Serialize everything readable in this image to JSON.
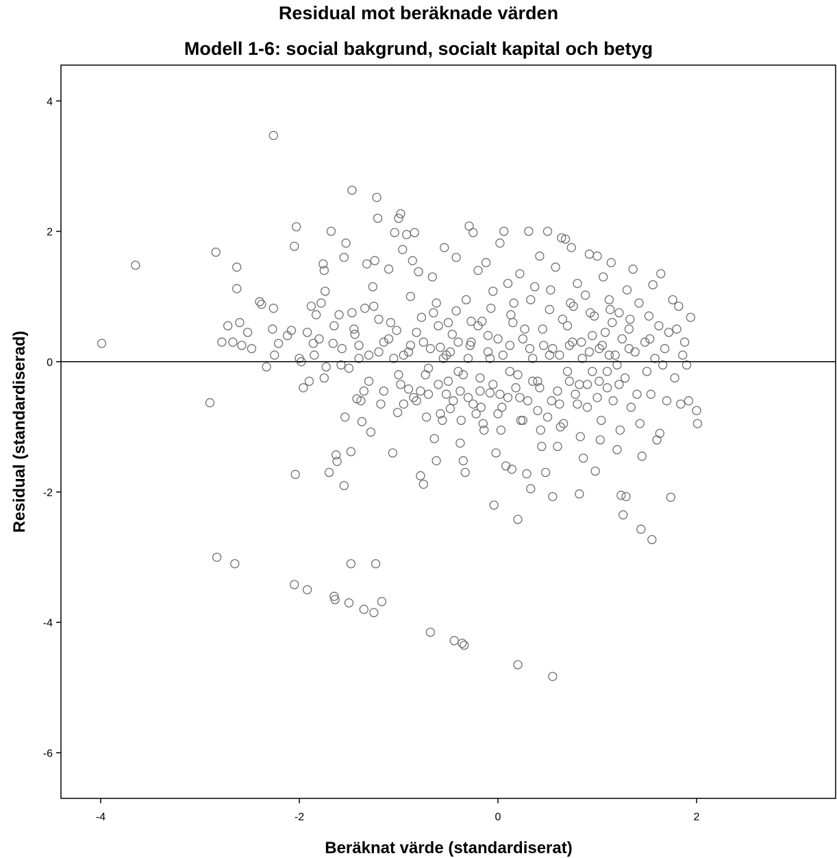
{
  "chart_data": {
    "type": "scatter",
    "title": "Residual mot beräknade värden",
    "subtitle": "Modell 1-6: social bakgrund, socialt kapital och betyg",
    "xlabel": "Beräknat värde (standardiserat)",
    "ylabel": "Residual (standardiserad)",
    "xlim": [
      -4.4,
      3.4
    ],
    "ylim": [
      -6.7,
      4.55
    ],
    "xticks": [
      -4,
      -2,
      0,
      2
    ],
    "yticks": [
      -6,
      -4,
      -2,
      0,
      2,
      4
    ],
    "xtick_labels": [
      "-4",
      "-2",
      "0",
      "2"
    ],
    "ytick_labels": [
      "-6",
      "-4",
      "-2",
      "0",
      "2",
      "4"
    ],
    "reference_line_y": 0,
    "grid": false,
    "legend": "none",
    "marker_color": "#6e6e6e",
    "points": [
      [
        -3.99,
        0.28
      ],
      [
        -3.65,
        1.48
      ],
      [
        -2.9,
        -0.63
      ],
      [
        -2.84,
        1.68
      ],
      [
        -2.83,
        -3.0
      ],
      [
        -2.78,
        0.3
      ],
      [
        -2.72,
        0.55
      ],
      [
        -2.67,
        0.3
      ],
      [
        -2.65,
        -3.1
      ],
      [
        -2.63,
        1.45
      ],
      [
        -2.63,
        1.12
      ],
      [
        -2.6,
        0.6
      ],
      [
        -2.58,
        0.25
      ],
      [
        -2.52,
        0.45
      ],
      [
        -2.48,
        0.2
      ],
      [
        -2.4,
        0.92
      ],
      [
        -2.38,
        0.88
      ],
      [
        -2.33,
        -0.08
      ],
      [
        -2.26,
        3.47
      ],
      [
        -2.27,
        0.5
      ],
      [
        -2.26,
        0.82
      ],
      [
        -2.25,
        0.1
      ],
      [
        -2.21,
        0.28
      ],
      [
        -2.12,
        0.4
      ],
      [
        -2.08,
        0.48
      ],
      [
        -2.05,
        -3.42
      ],
      [
        -2.05,
        1.77
      ],
      [
        -2.04,
        -1.73
      ],
      [
        -2.03,
        2.07
      ],
      [
        -2.0,
        0.05
      ],
      [
        -1.98,
        0.0
      ],
      [
        -1.96,
        -0.4
      ],
      [
        -1.92,
        0.45
      ],
      [
        -1.92,
        -3.5
      ],
      [
        -1.9,
        -0.3
      ],
      [
        -1.88,
        0.85
      ],
      [
        -1.86,
        0.28
      ],
      [
        -1.83,
        0.72
      ],
      [
        -1.8,
        0.35
      ],
      [
        -1.78,
        0.9
      ],
      [
        -1.76,
        1.5
      ],
      [
        -1.75,
        1.4
      ],
      [
        -1.74,
        1.08
      ],
      [
        -1.73,
        -0.08
      ],
      [
        -1.7,
        -1.7
      ],
      [
        -1.68,
        2.0
      ],
      [
        -1.66,
        0.28
      ],
      [
        -1.65,
        -3.6
      ],
      [
        -1.64,
        -3.65
      ],
      [
        -1.63,
        -1.43
      ],
      [
        -1.62,
        -1.53
      ],
      [
        -1.6,
        0.72
      ],
      [
        -1.57,
        0.2
      ],
      [
        -1.55,
        -1.9
      ],
      [
        -1.55,
        1.6
      ],
      [
        -1.54,
        -0.85
      ],
      [
        -1.53,
        1.82
      ],
      [
        -1.5,
        -3.7
      ],
      [
        -1.48,
        -1.38
      ],
      [
        -1.48,
        -3.1
      ],
      [
        -1.47,
        2.63
      ],
      [
        -1.47,
        0.75
      ],
      [
        -1.44,
        0.42
      ],
      [
        -1.42,
        -0.57
      ],
      [
        -1.4,
        0.05
      ],
      [
        -1.38,
        -0.6
      ],
      [
        -1.37,
        -0.92
      ],
      [
        -1.35,
        -3.8
      ],
      [
        -1.34,
        0.82
      ],
      [
        -1.32,
        1.5
      ],
      [
        -1.3,
        0.1
      ],
      [
        -1.28,
        -1.08
      ],
      [
        -1.26,
        1.15
      ],
      [
        -1.25,
        -3.85
      ],
      [
        -1.24,
        1.55
      ],
      [
        -1.23,
        -3.1
      ],
      [
        -1.22,
        2.52
      ],
      [
        -1.21,
        2.2
      ],
      [
        -1.2,
        0.65
      ],
      [
        -1.17,
        -3.68
      ],
      [
        -1.15,
        0.3
      ],
      [
        -1.1,
        1.42
      ],
      [
        -1.06,
        -1.4
      ],
      [
        -1.04,
        1.98
      ],
      [
        -1.02,
        0.48
      ],
      [
        -1.01,
        -0.78
      ],
      [
        -1.0,
        2.2
      ],
      [
        -0.98,
        2.27
      ],
      [
        -0.96,
        1.72
      ],
      [
        -0.95,
        0.1
      ],
      [
        -0.92,
        1.95
      ],
      [
        -0.9,
        -0.42
      ],
      [
        -0.88,
        1.0
      ],
      [
        -0.86,
        1.55
      ],
      [
        -0.84,
        1.98
      ],
      [
        -0.82,
        -0.6
      ],
      [
        -0.8,
        1.38
      ],
      [
        -0.78,
        -1.75
      ],
      [
        -0.77,
        0.68
      ],
      [
        -0.75,
        -1.88
      ],
      [
        -0.73,
        -0.2
      ],
      [
        -0.7,
        -0.5
      ],
      [
        -0.68,
        -4.15
      ],
      [
        -0.66,
        1.3
      ],
      [
        -0.64,
        -1.18
      ],
      [
        -0.62,
        -1.52
      ],
      [
        -0.6,
        0.55
      ],
      [
        -0.58,
        0.22
      ],
      [
        -0.56,
        -0.9
      ],
      [
        -0.54,
        1.75
      ],
      [
        -0.52,
        0.1
      ],
      [
        -0.5,
        -0.3
      ],
      [
        -0.48,
        -0.72
      ],
      [
        -0.46,
        0.42
      ],
      [
        -0.44,
        -4.28
      ],
      [
        -0.42,
        1.6
      ],
      [
        -0.4,
        -0.15
      ],
      [
        -0.38,
        -1.25
      ],
      [
        -0.36,
        -4.32
      ],
      [
        -0.35,
        -1.52
      ],
      [
        -0.34,
        -4.35
      ],
      [
        -0.33,
        -1.7
      ],
      [
        -0.32,
        0.95
      ],
      [
        -0.3,
        -0.55
      ],
      [
        -0.29,
        2.08
      ],
      [
        -0.27,
        0.3
      ],
      [
        -0.25,
        1.98
      ],
      [
        -0.22,
        -0.8
      ],
      [
        -0.2,
        1.4
      ],
      [
        -0.18,
        -0.25
      ],
      [
        -0.16,
        0.62
      ],
      [
        -0.14,
        -1.05
      ],
      [
        -0.12,
        1.52
      ],
      [
        -0.1,
        0.15
      ],
      [
        -0.08,
        -0.48
      ],
      [
        -0.05,
        1.08
      ],
      [
        -0.04,
        -2.2
      ],
      [
        -0.02,
        -1.4
      ],
      [
        0.0,
        0.35
      ],
      [
        0.02,
        1.82
      ],
      [
        0.04,
        -0.7
      ],
      [
        0.06,
        2.0
      ],
      [
        0.08,
        -1.6
      ],
      [
        0.1,
        1.2
      ],
      [
        0.12,
        -0.15
      ],
      [
        0.14,
        -1.65
      ],
      [
        0.16,
        0.9
      ],
      [
        0.18,
        -0.4
      ],
      [
        0.2,
        -2.42
      ],
      [
        0.2,
        -4.65
      ],
      [
        0.22,
        1.35
      ],
      [
        0.25,
        -0.9
      ],
      [
        0.27,
        0.5
      ],
      [
        0.29,
        -1.72
      ],
      [
        0.31,
        2.0
      ],
      [
        0.33,
        -1.95
      ],
      [
        0.35,
        -0.3
      ],
      [
        0.37,
        1.15
      ],
      [
        0.4,
        -0.75
      ],
      [
        0.42,
        1.62
      ],
      [
        0.44,
        -1.3
      ],
      [
        0.46,
        0.25
      ],
      [
        0.48,
        -1.7
      ],
      [
        0.5,
        2.0
      ],
      [
        0.52,
        0.8
      ],
      [
        0.54,
        -0.6
      ],
      [
        0.55,
        -2.07
      ],
      [
        0.55,
        -4.83
      ],
      [
        0.58,
        1.45
      ],
      [
        0.6,
        -1.3
      ],
      [
        0.62,
        0.1
      ],
      [
        0.64,
        1.9
      ],
      [
        0.66,
        -0.95
      ],
      [
        0.68,
        1.88
      ],
      [
        0.7,
        0.55
      ],
      [
        0.72,
        -0.3
      ],
      [
        0.74,
        1.75
      ],
      [
        0.76,
        0.85
      ],
      [
        0.78,
        -0.5
      ],
      [
        0.8,
        1.2
      ],
      [
        0.82,
        -2.03
      ],
      [
        0.84,
        0.3
      ],
      [
        0.86,
        -1.48
      ],
      [
        0.88,
        1.02
      ],
      [
        0.9,
        -0.7
      ],
      [
        0.92,
        1.65
      ],
      [
        0.95,
        -0.15
      ],
      [
        0.97,
        0.7
      ],
      [
        0.98,
        -1.68
      ],
      [
        1.0,
        1.62
      ],
      [
        1.02,
        0.2
      ],
      [
        1.04,
        -0.9
      ],
      [
        1.06,
        1.3
      ],
      [
        1.08,
        0.45
      ],
      [
        1.1,
        -0.4
      ],
      [
        1.12,
        0.95
      ],
      [
        1.14,
        1.52
      ],
      [
        1.16,
        -0.6
      ],
      [
        1.18,
        0.1
      ],
      [
        1.2,
        -1.35
      ],
      [
        1.22,
        0.75
      ],
      [
        1.24,
        -2.05
      ],
      [
        1.26,
        -2.35
      ],
      [
        1.28,
        -0.25
      ],
      [
        1.29,
        -2.07
      ],
      [
        1.3,
        1.1
      ],
      [
        1.32,
        0.5
      ],
      [
        1.34,
        -0.7
      ],
      [
        1.36,
        1.42
      ],
      [
        1.38,
        0.15
      ],
      [
        1.4,
        -0.5
      ],
      [
        1.42,
        0.9
      ],
      [
        1.44,
        -2.57
      ],
      [
        1.45,
        -1.45
      ],
      [
        1.48,
        0.3
      ],
      [
        1.5,
        -0.15
      ],
      [
        1.52,
        0.7
      ],
      [
        1.54,
        -0.5
      ],
      [
        1.55,
        -2.73
      ],
      [
        1.56,
        1.18
      ],
      [
        1.58,
        0.05
      ],
      [
        1.6,
        -1.2
      ],
      [
        1.62,
        0.55
      ],
      [
        1.64,
        1.35
      ],
      [
        1.66,
        -0.05
      ],
      [
        1.68,
        0.2
      ],
      [
        1.7,
        -0.6
      ],
      [
        1.72,
        0.45
      ],
      [
        1.74,
        -2.08
      ],
      [
        1.76,
        0.95
      ],
      [
        1.78,
        -0.25
      ],
      [
        1.8,
        0.5
      ],
      [
        1.82,
        0.85
      ],
      [
        1.84,
        -0.65
      ],
      [
        1.86,
        0.1
      ],
      [
        1.88,
        0.3
      ],
      [
        1.9,
        -0.05
      ],
      [
        1.92,
        -0.6
      ],
      [
        1.94,
        0.68
      ],
      [
        2.0,
        -0.75
      ],
      [
        2.01,
        -0.95
      ],
      [
        -1.1,
        0.35
      ],
      [
        -1.0,
        -0.2
      ],
      [
        -0.9,
        0.15
      ],
      [
        -0.85,
        -0.55
      ],
      [
        -0.75,
        0.3
      ],
      [
        -0.7,
        -0.1
      ],
      [
        -0.65,
        0.75
      ],
      [
        -0.6,
        -0.35
      ],
      [
        -0.55,
        0.05
      ],
      [
        -0.5,
        0.6
      ],
      [
        -0.45,
        -0.6
      ],
      [
        -0.4,
        0.3
      ],
      [
        -0.35,
        -0.2
      ],
      [
        -0.3,
        0.05
      ],
      [
        -0.25,
        -0.65
      ],
      [
        -0.2,
        0.55
      ],
      [
        -0.15,
        -0.95
      ],
      [
        -0.1,
        0.4
      ],
      [
        -0.05,
        -0.35
      ],
      [
        0.0,
        -0.8
      ],
      [
        0.05,
        0.1
      ],
      [
        0.1,
        -0.55
      ],
      [
        0.15,
        0.6
      ],
      [
        0.2,
        -0.2
      ],
      [
        0.25,
        0.35
      ],
      [
        0.3,
        -0.6
      ],
      [
        0.35,
        0.05
      ],
      [
        0.4,
        -0.3
      ],
      [
        0.45,
        0.5
      ],
      [
        0.5,
        -0.85
      ],
      [
        0.55,
        0.2
      ],
      [
        0.6,
        -0.45
      ],
      [
        0.65,
        0.65
      ],
      [
        0.7,
        -0.15
      ],
      [
        0.75,
        0.3
      ],
      [
        0.8,
        -0.65
      ],
      [
        0.85,
        0.05
      ],
      [
        0.9,
        -0.35
      ],
      [
        0.95,
        0.4
      ],
      [
        1.0,
        -0.55
      ],
      [
        1.05,
        0.25
      ],
      [
        1.1,
        -0.15
      ],
      [
        1.15,
        0.6
      ],
      [
        1.2,
        -0.05
      ],
      [
        1.25,
        0.35
      ],
      [
        -1.5,
        -0.1
      ],
      [
        -1.4,
        0.25
      ],
      [
        -1.3,
        -0.3
      ],
      [
        -1.2,
        0.15
      ],
      [
        -1.15,
        -0.45
      ],
      [
        -1.05,
        0.05
      ],
      [
        -0.95,
        -0.65
      ],
      [
        -0.82,
        0.45
      ],
      [
        -0.72,
        -0.85
      ],
      [
        -0.62,
        0.9
      ],
      [
        -0.52,
        -0.5
      ],
      [
        -0.42,
        0.78
      ],
      [
        -0.37,
        -0.9
      ],
      [
        -0.27,
        0.62
      ],
      [
        -0.17,
        -0.7
      ],
      [
        -0.07,
        0.82
      ],
      [
        0.03,
        -1.05
      ],
      [
        0.13,
        0.72
      ],
      [
        0.23,
        -0.9
      ],
      [
        0.33,
        0.95
      ],
      [
        0.43,
        -1.05
      ],
      [
        0.53,
        1.1
      ],
      [
        0.63,
        -1.0
      ],
      [
        0.73,
        0.9
      ],
      [
        0.83,
        -1.15
      ],
      [
        0.93,
        0.75
      ],
      [
        1.03,
        -1.2
      ],
      [
        1.13,
        0.8
      ],
      [
        1.23,
        -1.05
      ],
      [
        1.33,
        0.65
      ],
      [
        1.43,
        -0.95
      ],
      [
        1.53,
        0.35
      ],
      [
        1.63,
        -1.1
      ],
      [
        -1.85,
        0.1
      ],
      [
        -1.75,
        -0.25
      ],
      [
        -1.65,
        0.55
      ],
      [
        -1.58,
        -0.05
      ],
      [
        -1.45,
        0.5
      ],
      [
        -1.35,
        -0.45
      ],
      [
        -1.25,
        0.85
      ],
      [
        -1.18,
        -0.65
      ],
      [
        -1.08,
        0.6
      ],
      [
        -0.98,
        -0.35
      ],
      [
        -0.88,
        0.25
      ],
      [
        -0.78,
        -0.45
      ],
      [
        -0.68,
        0.2
      ],
      [
        -0.58,
        -0.8
      ],
      [
        -0.48,
        0.15
      ],
      [
        -0.38,
        -0.45
      ],
      [
        -0.28,
        0.25
      ],
      [
        -0.18,
        -0.45
      ],
      [
        -0.08,
        0.05
      ],
      [
        0.02,
        -0.5
      ],
      [
        0.12,
        0.25
      ],
      [
        0.22,
        -0.55
      ],
      [
        0.32,
        0.2
      ],
      [
        0.42,
        -0.4
      ],
      [
        0.52,
        0.1
      ],
      [
        0.62,
        -0.65
      ],
      [
        0.72,
        0.25
      ],
      [
        0.82,
        -0.35
      ],
      [
        0.92,
        0.15
      ],
      [
        1.02,
        -0.3
      ],
      [
        1.12,
        0.1
      ],
      [
        1.22,
        -0.35
      ],
      [
        1.32,
        0.2
      ]
    ]
  }
}
